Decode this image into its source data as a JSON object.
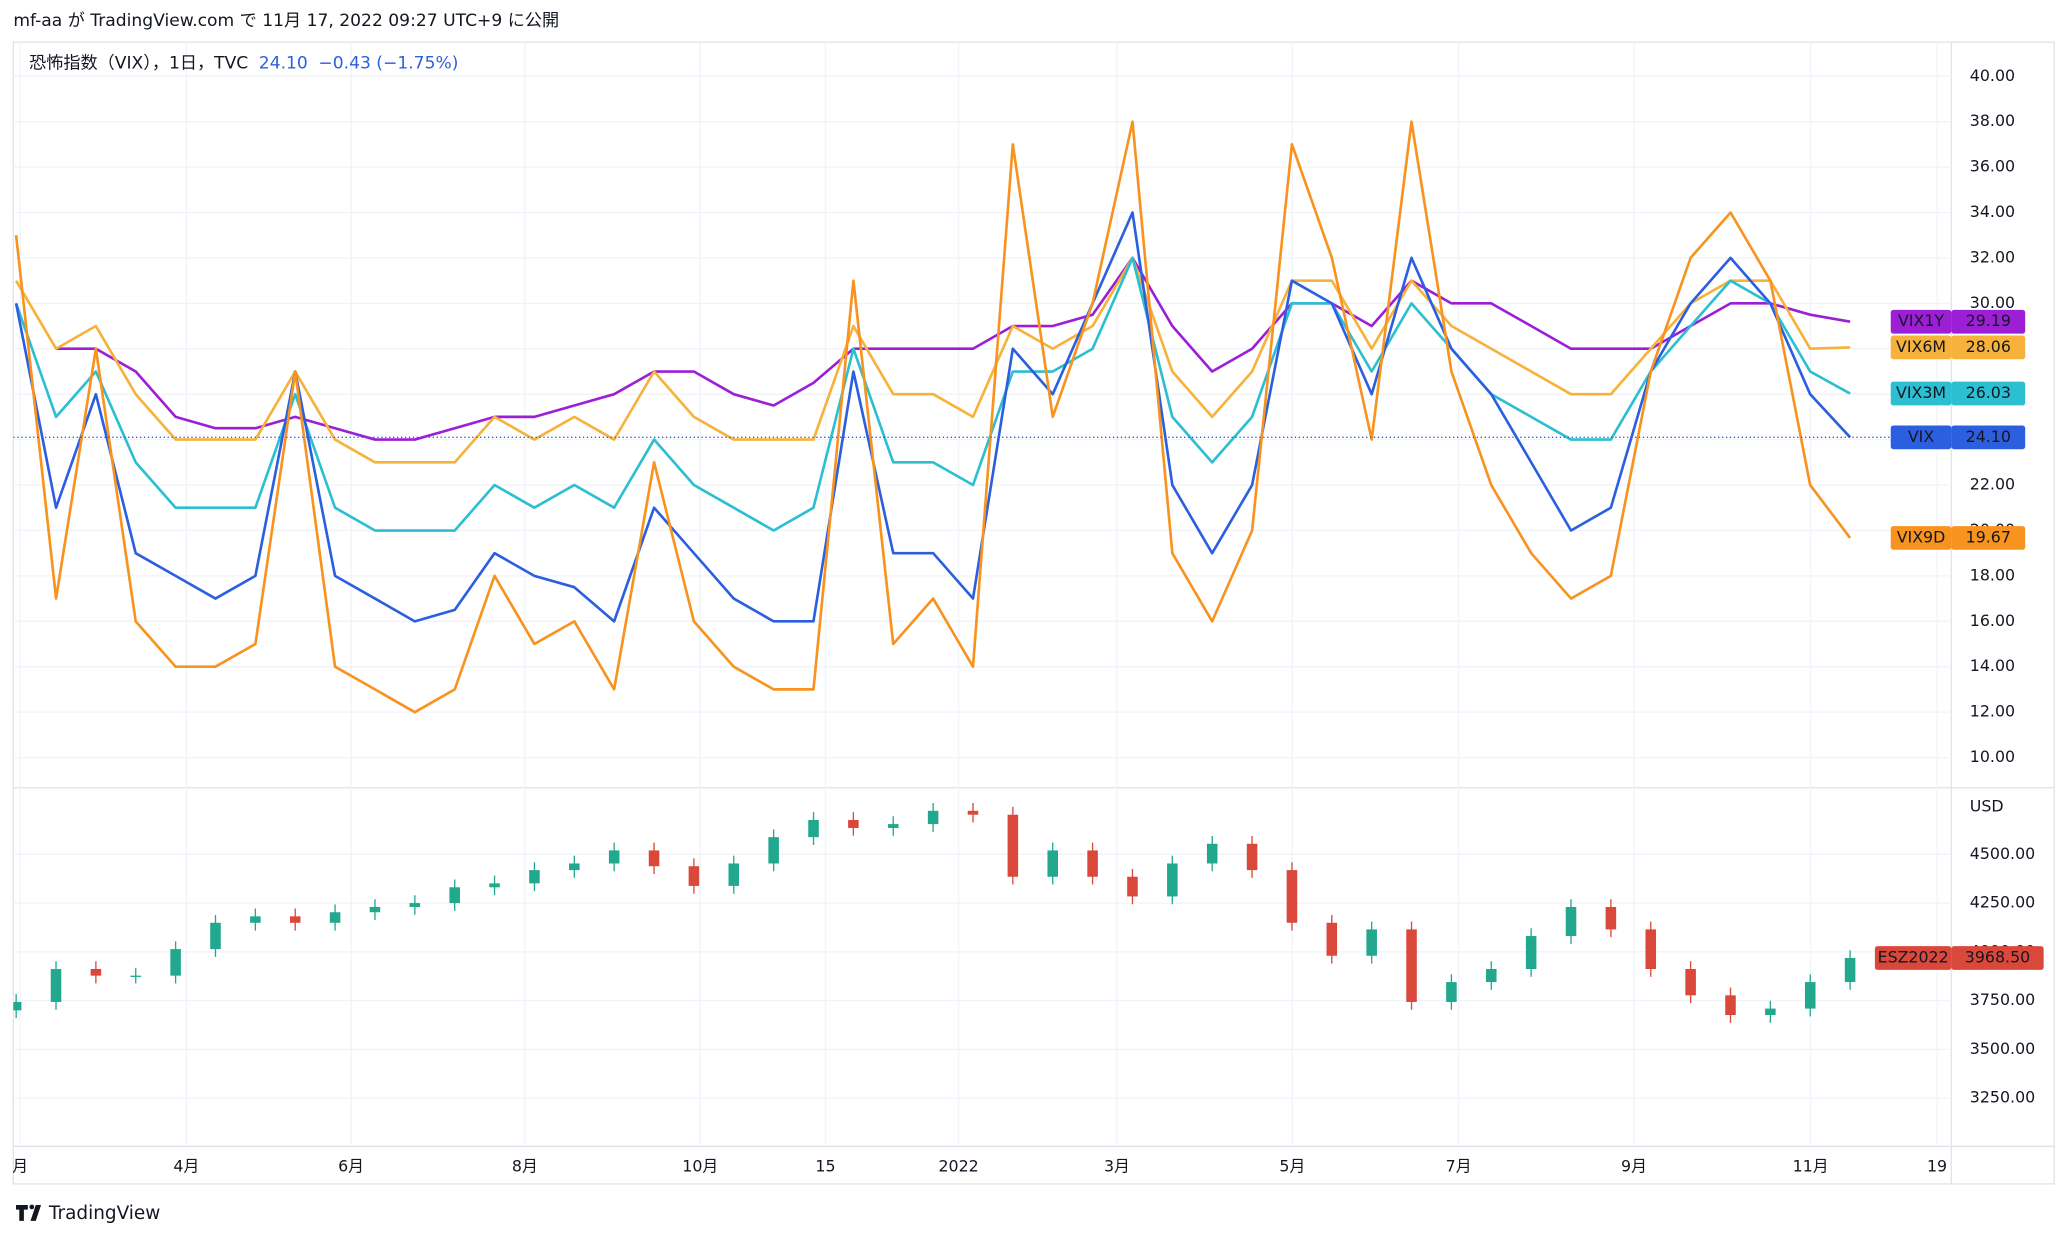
{
  "header": {
    "text": "mf-aa が TradingView.com で 11月 17, 2022 09:27 UTC+9 に公開"
  },
  "legend": {
    "symbol": "恐怖指数（VIX），1日，TVC",
    "last": "24.10",
    "change": "−0.43 (−1.75%)"
  },
  "footer": {
    "brand": "TradingView"
  },
  "chart_data": [
    {
      "type": "line",
      "grid": true,
      "xlim": [
        -0.07,
        48.54
      ],
      "ylim": [
        8.7,
        41.5
      ],
      "yticks": [
        {
          "value": 10,
          "label": "10.00"
        },
        {
          "value": 12,
          "label": "12.00"
        },
        {
          "value": 14,
          "label": "14.00"
        },
        {
          "value": 16,
          "label": "16.00"
        },
        {
          "value": 18,
          "label": "18.00"
        },
        {
          "value": 20,
          "label": "20.00"
        },
        {
          "value": 22,
          "label": "22.00"
        },
        {
          "value": 24,
          "label": "24.00"
        },
        {
          "value": 26,
          "label": "26.00"
        },
        {
          "value": 28,
          "label": "28.00"
        },
        {
          "value": 30,
          "label": "30.00"
        },
        {
          "value": 32,
          "label": "32.00"
        },
        {
          "value": 34,
          "label": "34.00"
        },
        {
          "value": 36,
          "label": "36.00"
        },
        {
          "value": 38,
          "label": "38.00"
        },
        {
          "value": 40,
          "label": "40.00"
        }
      ],
      "last_line_series": 3,
      "series": [
        {
          "name": "VIX1Y",
          "color": "#9c1fd6",
          "values": [
            null,
            28,
            28,
            27,
            25,
            24.5,
            24.5,
            25,
            24.5,
            24,
            24,
            24.5,
            25,
            25,
            25.5,
            26,
            27,
            27,
            26,
            25.5,
            26.5,
            28,
            28,
            28,
            28,
            29,
            29,
            29.5,
            32,
            29,
            27,
            28,
            30,
            30,
            29,
            31,
            30,
            30,
            29,
            28,
            28,
            28,
            29,
            30,
            30,
            29.5,
            29.19
          ],
          "value_labels": [
            null,
            null,
            null,
            null,
            null,
            null,
            null,
            null,
            null,
            null,
            null,
            null,
            null,
            null,
            null,
            null,
            null,
            null,
            null,
            null,
            null,
            null,
            null,
            null,
            null,
            null,
            null,
            null,
            null,
            null,
            null,
            null,
            null,
            null,
            null,
            null,
            null,
            null,
            null,
            null,
            null,
            null,
            null,
            null,
            null,
            null,
            "29.19"
          ]
        },
        {
          "name": "VIX6M",
          "color": "#f6b23a",
          "values": [
            31,
            28,
            29,
            26,
            24,
            24,
            24,
            27,
            24,
            23,
            23,
            23,
            25,
            24,
            25,
            24,
            27,
            25,
            24,
            24,
            24,
            29,
            26,
            26,
            25,
            29,
            28,
            29,
            32,
            27,
            25,
            27,
            31,
            31,
            28,
            31,
            29,
            28,
            27,
            26,
            26,
            28,
            30,
            31,
            31,
            28,
            28.06
          ],
          "value_labels": [
            null,
            null,
            null,
            null,
            null,
            null,
            null,
            null,
            null,
            null,
            null,
            null,
            null,
            null,
            null,
            null,
            null,
            null,
            null,
            null,
            null,
            null,
            null,
            null,
            null,
            null,
            null,
            null,
            null,
            null,
            null,
            null,
            null,
            null,
            null,
            null,
            null,
            null,
            null,
            null,
            null,
            null,
            null,
            null,
            null,
            null,
            "28.06"
          ]
        },
        {
          "name": "VIX3M",
          "color": "#2bbfd1",
          "values": [
            30,
            25,
            27,
            23,
            21,
            21,
            21,
            26,
            21,
            20,
            20,
            20,
            22,
            21,
            22,
            21,
            24,
            22,
            21,
            20,
            21,
            28,
            23,
            23,
            22,
            27,
            27,
            28,
            32,
            25,
            23,
            25,
            30,
            30,
            27,
            30,
            28,
            26,
            25,
            24,
            24,
            27,
            29,
            31,
            30,
            27,
            26.03
          ],
          "value_labels": [
            null,
            null,
            null,
            null,
            null,
            null,
            null,
            null,
            null,
            null,
            null,
            null,
            null,
            null,
            null,
            null,
            null,
            null,
            null,
            null,
            null,
            null,
            null,
            null,
            null,
            null,
            null,
            null,
            null,
            null,
            null,
            null,
            null,
            null,
            null,
            null,
            null,
            null,
            null,
            null,
            null,
            null,
            null,
            null,
            null,
            null,
            "26.03"
          ]
        },
        {
          "name": "VIX",
          "color": "#2c5fe0",
          "values": [
            30,
            21,
            26,
            19,
            18,
            17,
            18,
            27,
            18,
            17,
            16,
            16.5,
            19,
            18,
            17.5,
            16,
            21,
            19,
            17,
            16,
            16,
            27,
            19,
            19,
            17,
            28,
            26,
            30,
            34,
            22,
            19,
            22,
            31,
            30,
            26,
            32,
            28,
            26,
            23,
            20,
            21,
            27,
            30,
            32,
            30,
            26,
            24.1
          ],
          "value_labels": [
            null,
            null,
            null,
            null,
            null,
            null,
            null,
            null,
            null,
            null,
            null,
            null,
            null,
            null,
            null,
            null,
            null,
            null,
            null,
            null,
            null,
            null,
            null,
            null,
            null,
            null,
            null,
            null,
            null,
            null,
            null,
            null,
            null,
            null,
            null,
            null,
            null,
            null,
            null,
            null,
            null,
            null,
            null,
            null,
            null,
            null,
            "24.10"
          ]
        },
        {
          "name": "VIX9D",
          "color": "#f7931e",
          "values": [
            33,
            17,
            28,
            16,
            14,
            14,
            15,
            27,
            14,
            13,
            12,
            13,
            18,
            15,
            16,
            13,
            23,
            16,
            14,
            13,
            13,
            31,
            15,
            17,
            14,
            37,
            25,
            30,
            38,
            19,
            16,
            20,
            37,
            32,
            24,
            38,
            27,
            22,
            19,
            17,
            18,
            27,
            32,
            34,
            31,
            22,
            19.67
          ],
          "value_labels": [
            null,
            null,
            null,
            null,
            null,
            null,
            null,
            null,
            null,
            null,
            null,
            null,
            null,
            null,
            null,
            null,
            null,
            null,
            null,
            null,
            null,
            null,
            null,
            null,
            null,
            null,
            null,
            null,
            null,
            null,
            null,
            null,
            null,
            null,
            null,
            null,
            null,
            null,
            null,
            null,
            null,
            null,
            null,
            null,
            null,
            null,
            "19.67"
          ]
        }
      ]
    },
    {
      "type": "candlestick",
      "grid": true,
      "y_unit": "USD",
      "xlim": [
        -0.07,
        48.54
      ],
      "xticks": [
        {
          "value": 0.1,
          "label": "月"
        },
        {
          "value": 4.27,
          "label": "4月"
        },
        {
          "value": 8.4,
          "label": "6月"
        },
        {
          "value": 12.76,
          "label": "8月"
        },
        {
          "value": 17.16,
          "label": "10月"
        },
        {
          "value": 20.3,
          "label": "15"
        },
        {
          "value": 23.64,
          "label": "2022"
        },
        {
          "value": 27.61,
          "label": "3月"
        },
        {
          "value": 32.01,
          "label": "5月"
        },
        {
          "value": 36.18,
          "label": "7月"
        },
        {
          "value": 40.58,
          "label": "9月"
        },
        {
          "value": 45.01,
          "label": "11月"
        },
        {
          "value": 48.18,
          "label": "19"
        }
      ],
      "ylim": [
        3013,
        4838
      ],
      "yticks": [
        {
          "value": 3250,
          "label": "3250.00"
        },
        {
          "value": 3500,
          "label": "3500.00"
        },
        {
          "value": 3750,
          "label": "3750.00"
        },
        {
          "value": 4000,
          "label": "4000.00"
        },
        {
          "value": 4250,
          "label": "4250.00"
        },
        {
          "value": 4500,
          "label": "4500.00"
        }
      ],
      "series": [
        {
          "name": "ESZ2022",
          "up_color": "#22a88f",
          "down_color": "#d9483b",
          "open": [
            3700,
            3743,
            3912,
            3878,
            3878,
            4014,
            4149,
            4182,
            4149,
            4203,
            4230,
            4250,
            4331,
            4351,
            4419,
            4453,
            4520,
            4439,
            4338,
            4453,
            4588,
            4676,
            4635,
            4655,
            4723,
            4703,
            4385,
            4520,
            4385,
            4284,
            4453,
            4554,
            4419,
            4149,
            3980,
            4115,
            3743,
            3845,
            3912,
            4081,
            4230,
            4115,
            3912,
            3777,
            3676,
            3709,
            3845
          ],
          "high": [
            3783,
            3952,
            3952,
            3918,
            4054,
            4189,
            4222,
            4222,
            4243,
            4270,
            4290,
            4371,
            4391,
            4459,
            4493,
            4560,
            4560,
            4479,
            4493,
            4628,
            4716,
            4716,
            4695,
            4763,
            4763,
            4743,
            4560,
            4560,
            4425,
            4493,
            4594,
            4594,
            4459,
            4189,
            4155,
            4155,
            3885,
            3952,
            4121,
            4270,
            4270,
            4155,
            3952,
            3817,
            3749,
            3885,
            4008
          ],
          "low": [
            3660,
            3703,
            3838,
            3838,
            3838,
            3974,
            4109,
            4109,
            4109,
            4163,
            4190,
            4210,
            4291,
            4311,
            4379,
            4413,
            4399,
            4298,
            4298,
            4413,
            4548,
            4595,
            4595,
            4615,
            4663,
            4345,
            4345,
            4345,
            4244,
            4244,
            4413,
            4379,
            4109,
            3940,
            3940,
            3703,
            3703,
            3805,
            3872,
            4041,
            4075,
            3872,
            3737,
            3636,
            3636,
            3669,
            3805
          ],
          "close": [
            3743,
            3912,
            3878,
            3878,
            4014,
            4149,
            4182,
            4149,
            4203,
            4230,
            4250,
            4331,
            4351,
            4419,
            4453,
            4520,
            4439,
            4338,
            4453,
            4588,
            4676,
            4635,
            4655,
            4723,
            4703,
            4385,
            4520,
            4385,
            4284,
            4453,
            4554,
            4419,
            4149,
            3980,
            4115,
            3743,
            3845,
            3912,
            4081,
            4230,
            4115,
            3912,
            3777,
            3676,
            3709,
            3845,
            3968.5
          ],
          "value_labels": [
            null,
            null,
            null,
            null,
            null,
            null,
            null,
            null,
            null,
            null,
            null,
            null,
            null,
            null,
            null,
            null,
            null,
            null,
            null,
            null,
            null,
            null,
            null,
            null,
            null,
            null,
            null,
            null,
            null,
            null,
            null,
            null,
            null,
            null,
            null,
            null,
            null,
            null,
            null,
            null,
            null,
            null,
            null,
            null,
            null,
            null,
            "3968.50"
          ]
        }
      ]
    }
  ]
}
